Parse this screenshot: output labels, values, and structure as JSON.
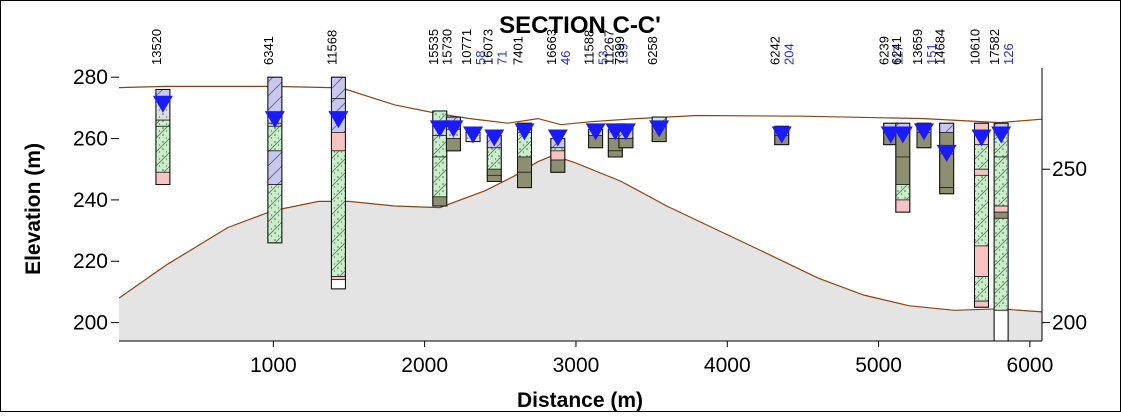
{
  "chart_data": {
    "type": "cross-section",
    "title": "SECTION C-C'",
    "xlabel": "Distance (m)",
    "ylabel": "Elevation (m)",
    "xlim": [
      -20,
      6080
    ],
    "ylim": [
      194,
      283
    ],
    "x_ticks": [
      1000,
      2000,
      3000,
      4000,
      5000,
      6000
    ],
    "y_ticks_left": [
      200,
      220,
      240,
      260,
      280
    ],
    "y_ticks_right": [
      200,
      250
    ],
    "ground_surface": [
      [
        -20,
        276.6
      ],
      [
        300,
        277
      ],
      [
        1000,
        277
      ],
      [
        1450,
        276.5
      ],
      [
        1800,
        271
      ],
      [
        2100,
        268
      ],
      [
        2300,
        266.5
      ],
      [
        2550,
        265
      ],
      [
        2750,
        266.5
      ],
      [
        2900,
        264.5
      ],
      [
        3100,
        265.5
      ],
      [
        3400,
        266.5
      ],
      [
        3800,
        267.5
      ],
      [
        4500,
        267.3
      ],
      [
        5300,
        266.5
      ],
      [
        5800,
        265.2
      ],
      [
        6080,
        266.3
      ]
    ],
    "bedrock_surface": [
      [
        -20,
        208
      ],
      [
        300,
        219
      ],
      [
        700,
        231
      ],
      [
        1000,
        236.5
      ],
      [
        1300,
        239.5
      ],
      [
        1500,
        239.5
      ],
      [
        1800,
        238
      ],
      [
        2100,
        237.5
      ],
      [
        2400,
        243
      ],
      [
        2600,
        248
      ],
      [
        2750,
        252.5
      ],
      [
        2850,
        254.5
      ],
      [
        3000,
        252
      ],
      [
        3300,
        246
      ],
      [
        3600,
        238
      ],
      [
        3900,
        231
      ],
      [
        4200,
        224
      ],
      [
        4600,
        214.5
      ],
      [
        4900,
        209
      ],
      [
        5200,
        205.5
      ],
      [
        5500,
        204
      ],
      [
        5800,
        204.5
      ],
      [
        6080,
        203.5
      ]
    ],
    "wells": [
      {
        "id": "13520",
        "x": 270,
        "top": 276,
        "bottom": 245,
        "water": 271,
        "label_color": "black",
        "layers": [
          [
            276,
            273,
            "clay"
          ],
          [
            273,
            266,
            "gravel"
          ],
          [
            266,
            264,
            "sand"
          ],
          [
            264,
            249,
            "sand"
          ],
          [
            249,
            245,
            "till"
          ]
        ]
      },
      {
        "id": "6341",
        "x": 1010,
        "top": 280,
        "bottom": 226,
        "water": 266,
        "label_color": "black",
        "layers": [
          [
            280,
            267,
            "clay"
          ],
          [
            267,
            265,
            "gravel"
          ],
          [
            265,
            264,
            "sand"
          ],
          [
            264,
            256,
            "sand"
          ],
          [
            256,
            245,
            "clay"
          ],
          [
            245,
            226,
            "sand"
          ]
        ]
      },
      {
        "id": "11568",
        "x": 1430,
        "top": 280,
        "bottom": 211,
        "water": 266,
        "label_color": "black",
        "layers": [
          [
            280,
            273,
            "clay"
          ],
          [
            273,
            262,
            "clay"
          ],
          [
            262,
            256,
            "till"
          ],
          [
            256,
            215,
            "sand"
          ],
          [
            215,
            214,
            "till"
          ],
          [
            214,
            211,
            "none"
          ]
        ]
      },
      {
        "id": "15535",
        "x": 2100,
        "top": 269,
        "bottom": 238,
        "water": 263,
        "label_color": "black",
        "layers": [
          [
            269,
            264,
            "sand"
          ],
          [
            264,
            261,
            "gravel"
          ],
          [
            261,
            254,
            "sand"
          ],
          [
            254,
            241,
            "sand"
          ],
          [
            241,
            238,
            "silt"
          ]
        ]
      },
      {
        "id": "15730",
        "x": 2190,
        "top": 267,
        "bottom": 256,
        "water": 263,
        "label_color": "black",
        "layers": [
          [
            267,
            263,
            "clay"
          ],
          [
            263,
            260,
            "gravel"
          ],
          [
            260,
            256,
            "silt"
          ]
        ]
      },
      {
        "id": "10771",
        "x": 2320,
        "top": 262,
        "bottom": 259,
        "water": 261,
        "label_color": "black",
        "layers": [
          [
            262,
            259,
            "gravel"
          ]
        ]
      },
      {
        "id": "58",
        "x": 2320,
        "label_color": "blue",
        "label_only": true
      },
      {
        "id": "16073",
        "x": 2460,
        "top": 261,
        "bottom": 246,
        "water": 260,
        "label_color": "black",
        "layers": [
          [
            261,
            257,
            "clay"
          ],
          [
            257,
            250,
            "sand"
          ],
          [
            250,
            248,
            "silt"
          ],
          [
            248,
            246,
            "silt"
          ]
        ]
      },
      {
        "id": "71",
        "x": 2460,
        "label_color": "blue",
        "label_only": true
      },
      {
        "id": "7401",
        "x": 2660,
        "top": 265,
        "bottom": 244,
        "water": 262,
        "label_color": "black",
        "layers": [
          [
            265,
            262,
            "clay"
          ],
          [
            262,
            254,
            "sand"
          ],
          [
            254,
            249,
            "silt"
          ],
          [
            249,
            244,
            "silt"
          ]
        ]
      },
      {
        "id": "16663",
        "x": 2880,
        "top": 260,
        "bottom": 249,
        "water": 260,
        "label_color": "black",
        "layers": [
          [
            260,
            257,
            "clay"
          ],
          [
            257,
            256,
            "sand"
          ],
          [
            256,
            253,
            "till"
          ],
          [
            253,
            249,
            "silt"
          ]
        ]
      },
      {
        "id": "46",
        "x": 2880,
        "label_color": "blue",
        "label_only": true
      },
      {
        "id": "11588",
        "x": 3130,
        "top": 263,
        "bottom": 257,
        "water": 262,
        "label_color": "black",
        "layers": [
          [
            263,
            261,
            "clay"
          ],
          [
            261,
            257,
            "silt"
          ]
        ]
      },
      {
        "id": "53",
        "x": 3130,
        "label_color": "blue",
        "label_only": true
      },
      {
        "id": "11267",
        "x": 3260,
        "top": 263,
        "bottom": 254,
        "water": 262,
        "label_color": "black",
        "layers": [
          [
            263,
            260,
            "clay"
          ],
          [
            260,
            256,
            "silt"
          ],
          [
            256,
            254,
            "silt"
          ]
        ]
      },
      {
        "id": "139",
        "x": 3260,
        "label_color": "blue",
        "label_only": true
      },
      {
        "id": "7399",
        "x": 3330,
        "top": 264,
        "bottom": 257,
        "water": 262,
        "label_color": "black",
        "layers": [
          [
            264,
            260,
            "clay"
          ],
          [
            260,
            257,
            "silt"
          ]
        ]
      },
      {
        "id": "6258",
        "x": 3550,
        "top": 267,
        "bottom": 259,
        "water": 263,
        "label_color": "black",
        "layers": [
          [
            267,
            264,
            "sand"
          ],
          [
            264,
            259,
            "silt"
          ]
        ]
      },
      {
        "id": "6242",
        "x": 4360,
        "top": 264,
        "bottom": 258,
        "water": 261,
        "label_color": "black",
        "layers": [
          [
            264,
            261,
            "clay"
          ],
          [
            261,
            258,
            "silt"
          ]
        ]
      },
      {
        "id": "204",
        "x": 4360,
        "label_color": "blue",
        "label_only": true
      },
      {
        "id": "6239",
        "x": 5080,
        "top": 265,
        "bottom": 258,
        "water": 261,
        "label_color": "black",
        "layers": [
          [
            265,
            262,
            "clay"
          ],
          [
            262,
            258,
            "silt"
          ]
        ]
      },
      {
        "id": "117",
        "x": 5080,
        "label_color": "blue",
        "label_only": true
      },
      {
        "id": "6241",
        "x": 5160,
        "top": 265,
        "bottom": 236,
        "water": 261,
        "label_color": "black",
        "layers": [
          [
            265,
            262,
            "clay"
          ],
          [
            262,
            254,
            "silt"
          ],
          [
            254,
            245,
            "silt"
          ],
          [
            245,
            240,
            "sand"
          ],
          [
            240,
            236,
            "till"
          ]
        ]
      },
      {
        "id": "13659",
        "x": 5300,
        "top": 265,
        "bottom": 257,
        "water": 262,
        "label_color": "black",
        "layers": [
          [
            265,
            262,
            "clay"
          ],
          [
            262,
            257,
            "silt"
          ]
        ]
      },
      {
        "id": "151",
        "x": 5300,
        "label_color": "blue",
        "label_only": true
      },
      {
        "id": "14684",
        "x": 5450,
        "top": 265,
        "bottom": 242,
        "water": 255,
        "label_color": "black",
        "layers": [
          [
            265,
            262,
            "clay"
          ],
          [
            262,
            255,
            "silt"
          ],
          [
            255,
            244,
            "silt"
          ],
          [
            244,
            242,
            "silt"
          ]
        ]
      },
      {
        "id": "10610",
        "x": 5680,
        "top": 265,
        "bottom": 205,
        "water": 260,
        "label_color": "black",
        "layers": [
          [
            265,
            258,
            "till"
          ],
          [
            258,
            250,
            "sand"
          ],
          [
            250,
            248,
            "till"
          ],
          [
            248,
            225,
            "sand"
          ],
          [
            225,
            215,
            "till"
          ],
          [
            215,
            207,
            "sand"
          ],
          [
            207,
            205,
            "till"
          ]
        ]
      },
      {
        "id": "17582",
        "x": 5810,
        "top": 265,
        "bottom": 194,
        "water": 261,
        "label_color": "black",
        "layers": [
          [
            265,
            262,
            "clay"
          ],
          [
            262,
            254,
            "sand"
          ],
          [
            254,
            238,
            "sand"
          ],
          [
            238,
            236,
            "till"
          ],
          [
            236,
            234,
            "silt"
          ],
          [
            234,
            204,
            "sand"
          ],
          [
            204,
            194,
            "none"
          ]
        ]
      },
      {
        "id": "126",
        "x": 5810,
        "label_color": "blue",
        "label_only": true
      }
    ],
    "colors": {
      "ground_line": "#8b4513",
      "bedrock_fill": "#e4e4e4",
      "water_marker": "#1a1aff",
      "blue_label": "#2233cc",
      "clay": "#c7c7f0",
      "sand": "#c8f0c8",
      "gravel": "#dedede",
      "till": "#f6c2c2",
      "silt": "#8e8e70",
      "none": "#ffffff"
    }
  }
}
